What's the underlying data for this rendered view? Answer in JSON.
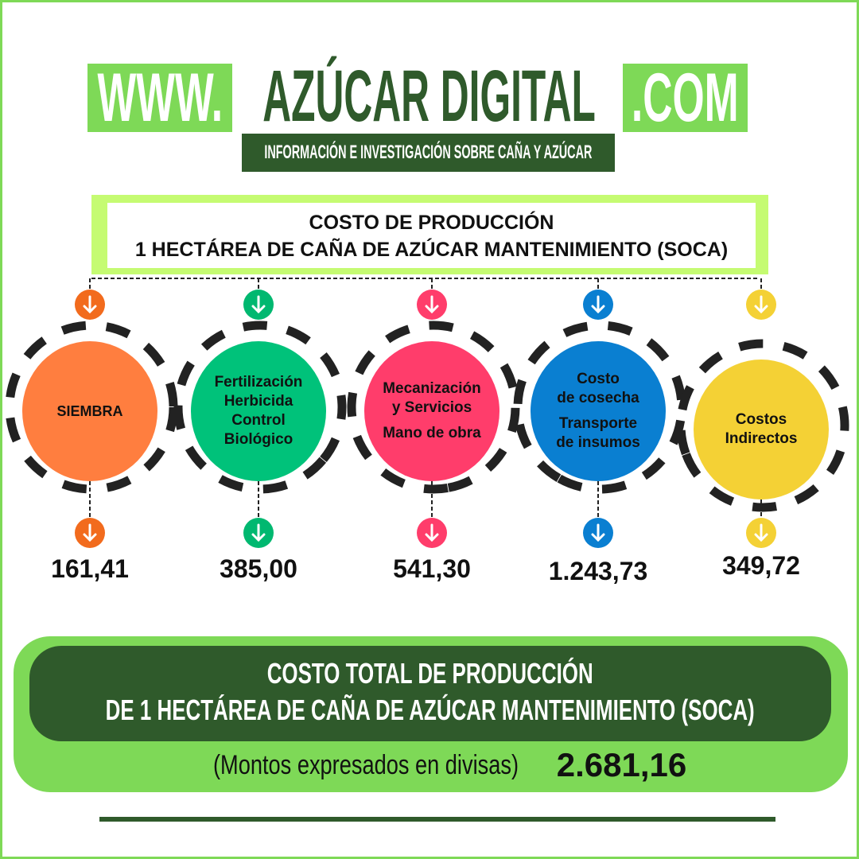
{
  "header": {
    "www": "WWW.",
    "brand": "AZÚCAR DIGITAL",
    "com": ".COM",
    "tagline": "INFORMACIÓN E INVESTIGACIÓN SOBRE CAÑA Y AZÚCAR"
  },
  "title": {
    "line1": "COSTO DE PRODUCCIÓN",
    "line2": "1 HECTÁREA DE CAÑA DE AZÚCAR MANTENIMIENTO (SOCA)"
  },
  "items": [
    {
      "lines": [
        "SIEMBRA"
      ],
      "value": "161,41",
      "color": "#ff7e3f",
      "arrow": "#f26b1d"
    },
    {
      "lines": [
        "Fertilización",
        "Herbicida",
        "Control",
        "Biológico"
      ],
      "value": "385,00",
      "color": "#00c27a",
      "arrow": "#00b870"
    },
    {
      "lines": [
        "Mecanización",
        "y Servicios",
        "",
        "Mano de obra"
      ],
      "value": "541,30",
      "color": "#ff3d6b",
      "arrow": "#ff3d6b"
    },
    {
      "lines": [
        "Costo",
        "de cosecha",
        "",
        "Transporte",
        "de insumos"
      ],
      "value": "1.243,73",
      "color": "#0a7fd1",
      "arrow": "#0a7fd1"
    },
    {
      "lines": [
        "Costos",
        "Indirectos"
      ],
      "value": "349,72",
      "color": "#f4d135",
      "arrow": "#f4d135"
    }
  ],
  "total": {
    "line1": "COSTO TOTAL DE PRODUCCIÓN",
    "line2": "DE 1 HECTÁREA DE CAÑA DE AZÚCAR MANTENIMIENTO (SOCA)",
    "note": "(Montos expresados en divisas)",
    "value": "2.681,16"
  },
  "colors": {
    "light_green": "#7ed957",
    "dark_green": "#2f5a2b",
    "title_green": "#c5fb72"
  }
}
